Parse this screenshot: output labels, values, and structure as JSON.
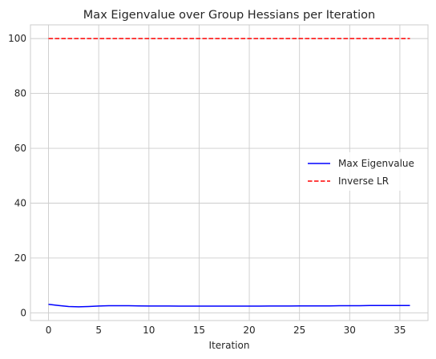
{
  "chart_data": {
    "type": "line",
    "title": "Max Eigenvalue over Group Hessians per Iteration",
    "xlabel": "Iteration",
    "ylabel": "",
    "xlim": [
      -1.8,
      37.8
    ],
    "ylim": [
      -2.8,
      105
    ],
    "xticks": [
      0,
      5,
      10,
      15,
      20,
      25,
      30,
      35
    ],
    "yticks": [
      0,
      20,
      40,
      60,
      80,
      100
    ],
    "grid": true,
    "legend": {
      "position": "center-right",
      "entries": [
        "Max Eigenvalue",
        "Inverse LR"
      ]
    },
    "series": [
      {
        "name": "Max Eigenvalue",
        "color": "#0000ff",
        "style": "solid",
        "x": [
          0,
          1,
          2,
          3,
          4,
          5,
          6,
          7,
          8,
          9,
          10,
          11,
          12,
          13,
          14,
          15,
          16,
          17,
          18,
          19,
          20,
          21,
          22,
          23,
          24,
          25,
          26,
          27,
          28,
          29,
          30,
          31,
          32,
          33,
          34,
          35,
          36
        ],
        "y": [
          3.1,
          2.7,
          2.3,
          2.2,
          2.3,
          2.5,
          2.6,
          2.6,
          2.6,
          2.55,
          2.5,
          2.5,
          2.5,
          2.45,
          2.45,
          2.45,
          2.45,
          2.45,
          2.45,
          2.45,
          2.45,
          2.45,
          2.5,
          2.5,
          2.5,
          2.55,
          2.55,
          2.55,
          2.55,
          2.6,
          2.6,
          2.6,
          2.65,
          2.65,
          2.7,
          2.7,
          2.7
        ]
      },
      {
        "name": "Inverse LR",
        "color": "#ff0000",
        "style": "dashed",
        "x": [
          0,
          36
        ],
        "y": [
          100,
          100
        ]
      }
    ]
  }
}
